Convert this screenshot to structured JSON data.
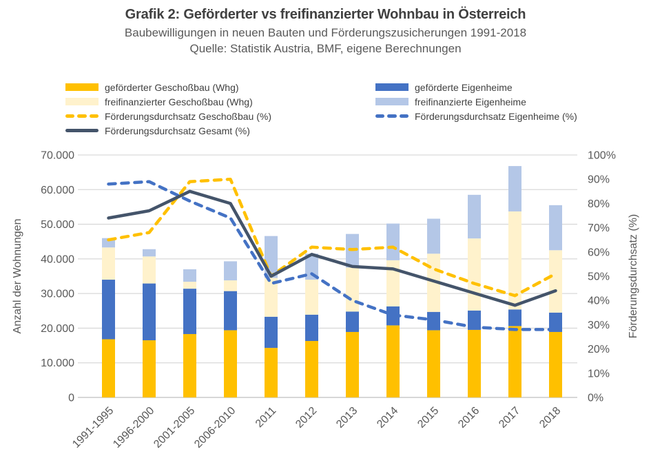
{
  "header": {
    "title": "Grafik 2: Geförderter vs freifinanzierter Wohnbau in Österreich",
    "subtitle": "Baubewilligungen in neuen Bauten und Förderungszusicherungen 1991-2018",
    "source": "Quelle: Statistik Austria, BMF, eigene Berechnungen"
  },
  "colors": {
    "gefoerdert_geschossbau": "#FFC000",
    "freifinanziert_geschossbau": "#FFF2CC",
    "gefoerdert_eigenheime": "#4472C4",
    "freifinanziert_eigenheime": "#B4C7E7",
    "gesamt_line": "#44546A",
    "gridline": "#D9D9D9",
    "axis_line": "#BFBFBF",
    "text": "#595959"
  },
  "legend": {
    "left": [
      {
        "label": "geförderter Geschoßbau (Whg)",
        "swatch": "bar",
        "color": "#FFC000"
      },
      {
        "label": "freifinanzierter Geschoßbau (Whg)",
        "swatch": "bar",
        "color": "#FFF2CC"
      },
      {
        "label": "Förderungsdurchsatz Geschoßbau (%)",
        "swatch": "dash",
        "color": "#FFC000"
      },
      {
        "label": "Förderungsdurchsatz Gesamt (%)",
        "swatch": "line",
        "color": "#44546A"
      }
    ],
    "right": [
      {
        "label": "geförderte Eigenheime",
        "swatch": "bar",
        "color": "#4472C4"
      },
      {
        "label": "freifinanzierte Eigenheime",
        "swatch": "bar",
        "color": "#B4C7E7"
      },
      {
        "label": "Förderungsdurchsatz Eigenheime (%)",
        "swatch": "dash",
        "color": "#4472C4"
      }
    ]
  },
  "chart_data": {
    "type": "bar+line combo (stacked bars, dual axis)",
    "categories": [
      "1991-1995",
      "1996-2000",
      "2001-2005",
      "2006-2010",
      "2011",
      "2012",
      "2013",
      "2014",
      "2015",
      "2016",
      "2017",
      "2018"
    ],
    "bar_series": [
      {
        "name": "geförderter Geschoßbau (Whg)",
        "color": "#FFC000",
        "values": [
          16800,
          16500,
          18300,
          19400,
          14300,
          16300,
          18900,
          20800,
          19400,
          19500,
          20600,
          18900
        ]
      },
      {
        "name": "geförderte Eigenheime",
        "color": "#4472C4",
        "values": [
          17200,
          16400,
          13100,
          11300,
          9000,
          7600,
          5900,
          5500,
          5300,
          5600,
          4800,
          5600
        ]
      },
      {
        "name": "freifinanzierter Geschoßbau (Whg)",
        "color": "#FFF2CC",
        "values": [
          9300,
          7800,
          2000,
          3100,
          11200,
          10100,
          12700,
          13300,
          16800,
          20800,
          28300,
          18000
        ]
      },
      {
        "name": "freifinanzierte Eigenheime",
        "color": "#B4C7E7",
        "values": [
          2700,
          2100,
          3600,
          5500,
          12100,
          7500,
          9700,
          10600,
          10100,
          12600,
          13100,
          13000
        ]
      }
    ],
    "line_series": [
      {
        "name": "Förderungsdurchsatz Geschoßbau (%)",
        "color": "#FFC000",
        "dashed": true,
        "values": [
          65,
          68,
          89,
          90,
          50,
          62,
          61,
          62,
          53,
          47,
          42,
          51
        ]
      },
      {
        "name": "Förderungsdurchsatz Eigenheime (%)",
        "color": "#4472C4",
        "dashed": true,
        "values": [
          88,
          89,
          81,
          74,
          47,
          51,
          40,
          34,
          32,
          29,
          28,
          28
        ]
      },
      {
        "name": "Förderungsdurchsatz Gesamt (%)",
        "color": "#44546A",
        "dashed": false,
        "values": [
          74,
          77,
          85,
          80,
          50,
          59,
          54,
          53,
          48,
          43,
          38,
          44
        ]
      }
    ],
    "left_axis": {
      "title": "Anzahl der Wohnungen",
      "min": 0,
      "max": 70000,
      "ticks": [
        "0",
        "10.000",
        "20.000",
        "30.000",
        "40.000",
        "50.000",
        "60.000",
        "70.000"
      ]
    },
    "right_axis": {
      "title": "Förderungsdurchsatz (%)",
      "min": 0,
      "max": 100,
      "ticks": [
        "0%",
        "10%",
        "20%",
        "30%",
        "40%",
        "50%",
        "60%",
        "70%",
        "80%",
        "90%",
        "100%"
      ]
    },
    "grid": "horizontal gridlines on",
    "legend_position": "top, two columns"
  }
}
